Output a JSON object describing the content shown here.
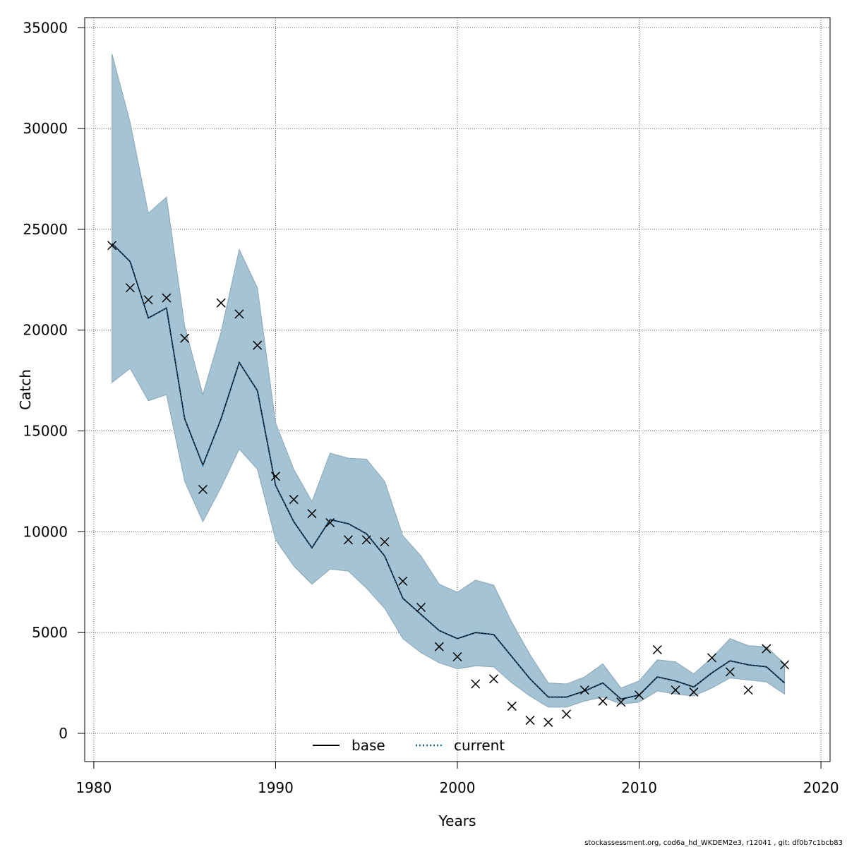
{
  "chart_data": {
    "type": "line",
    "title": "",
    "xlabel": "Years",
    "ylabel": "Catch",
    "xlim": [
      1979.5,
      2020.5
    ],
    "ylim": [
      -1400,
      35500
    ],
    "x_ticks": [
      1980,
      1990,
      2000,
      2010,
      2020
    ],
    "y_ticks": [
      0,
      5000,
      10000,
      15000,
      20000,
      25000,
      30000,
      35000
    ],
    "x_tick_labels": [
      "1980",
      "1990",
      "2000",
      "2010",
      "2020"
    ],
    "y_tick_labels": [
      "0",
      "5000",
      "10000",
      "15000",
      "20000",
      "25000",
      "30000",
      "35000"
    ],
    "grid": true,
    "legend_position": "bottom-center",
    "years": [
      1981,
      1982,
      1983,
      1984,
      1985,
      1986,
      1987,
      1988,
      1989,
      1990,
      1991,
      1992,
      1993,
      1994,
      1995,
      1996,
      1997,
      1998,
      1999,
      2000,
      2001,
      2002,
      2003,
      2004,
      2005,
      2006,
      2007,
      2008,
      2009,
      2010,
      2011,
      2012,
      2013,
      2014,
      2015,
      2016,
      2017,
      2018
    ],
    "series": [
      {
        "name": "base",
        "style": "solid",
        "color": "#000000",
        "values": [
          24300,
          23400,
          20600,
          21100,
          15600,
          13300,
          15600,
          18400,
          17000,
          12300,
          10500,
          9200,
          10600,
          10400,
          9900,
          8800,
          6700,
          5900,
          5100,
          4700,
          5000,
          4900,
          3800,
          2700,
          1800,
          1800,
          2100,
          2500,
          1700,
          1900,
          2800,
          2600,
          2300,
          3000,
          3600,
          3400,
          3300,
          2500
        ]
      },
      {
        "name": "current",
        "style": "dotted",
        "color": "#1f5f8f",
        "values": [
          24300,
          23400,
          20600,
          21100,
          15600,
          13300,
          15600,
          18400,
          17000,
          12300,
          10500,
          9200,
          10600,
          10400,
          9900,
          8800,
          6700,
          5900,
          5100,
          4700,
          5000,
          4900,
          3800,
          2700,
          1800,
          1800,
          2100,
          2500,
          1700,
          1900,
          2800,
          2600,
          2300,
          3000,
          3600,
          3400,
          3300,
          2500
        ]
      }
    ],
    "confidence_band": {
      "color": "#a4c3d4",
      "upper": [
        33700,
        30300,
        25800,
        26600,
        20200,
        16800,
        19900,
        24000,
        22100,
        15400,
        13100,
        11500,
        13900,
        13650,
        13600,
        12500,
        9800,
        8800,
        7400,
        7000,
        7600,
        7350,
        5500,
        3900,
        2500,
        2450,
        2800,
        3450,
        2250,
        2600,
        3650,
        3550,
        2950,
        3750,
        4700,
        4350,
        4300,
        3450
      ],
      "lower": [
        17400,
        18100,
        16500,
        16800,
        12500,
        10500,
        12200,
        14100,
        13100,
        9600,
        8300,
        7400,
        8150,
        8050,
        7200,
        6200,
        4700,
        4000,
        3500,
        3200,
        3350,
        3300,
        2500,
        1850,
        1300,
        1300,
        1600,
        1800,
        1450,
        1550,
        2100,
        1950,
        1850,
        2250,
        2750,
        2650,
        2550,
        1950
      ]
    },
    "observations": {
      "marker": "x",
      "values": [
        24200,
        22100,
        21500,
        21600,
        19600,
        12100,
        21350,
        20800,
        19250,
        12750,
        11600,
        10900,
        10450,
        9600,
        9600,
        9500,
        7550,
        6250,
        4300,
        3800,
        2450,
        2700,
        1350,
        650,
        550,
        950,
        2150,
        1600,
        1550,
        1900,
        4150,
        2150,
        2050,
        3750,
        3050,
        2150,
        4200,
        3400
      ]
    }
  },
  "legend": {
    "items": [
      {
        "label": "base"
      },
      {
        "label": "current"
      }
    ]
  },
  "footer": {
    "text": "stockassessment.org, cod6a_hd_WKDEM2e3, r12041 , git: df0b7c1bcb83"
  }
}
